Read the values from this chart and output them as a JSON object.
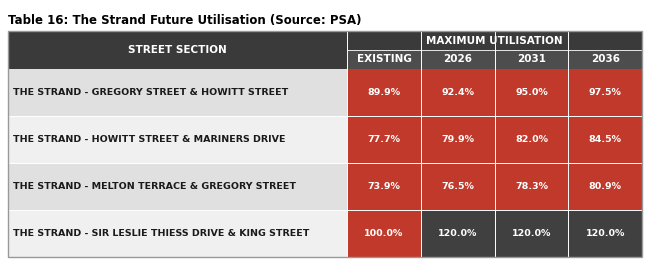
{
  "title": "Table 16: The Strand Future Utilisation (Source: PSA)",
  "header_col": "STREET SECTION",
  "header_group": "MAXIMUM UTILISATION",
  "sub_headers": [
    "EXISTING",
    "2026",
    "2031",
    "2036"
  ],
  "rows": [
    {
      "label": "THE STRAND - GREGORY STREET & HOWITT STREET",
      "values": [
        "89.9%",
        "92.4%",
        "95.0%",
        "97.5%"
      ],
      "colors": [
        "#c0392b",
        "#c0392b",
        "#c0392b",
        "#c0392b"
      ],
      "row_bg": "#e0e0e0"
    },
    {
      "label": "THE STRAND - HOWITT STREET & MARINERS DRIVE",
      "values": [
        "77.7%",
        "79.9%",
        "82.0%",
        "84.5%"
      ],
      "colors": [
        "#c0392b",
        "#c0392b",
        "#c0392b",
        "#c0392b"
      ],
      "row_bg": "#f0f0f0"
    },
    {
      "label": "THE STRAND - MELTON TERRACE & GREGORY STREET",
      "values": [
        "73.9%",
        "76.5%",
        "78.3%",
        "80.9%"
      ],
      "colors": [
        "#c0392b",
        "#c0392b",
        "#c0392b",
        "#c0392b"
      ],
      "row_bg": "#e0e0e0"
    },
    {
      "label": "THE STRAND - SIR LESLIE THIESS DRIVE & KING STREET",
      "values": [
        "100.0%",
        "120.0%",
        "120.0%",
        "120.0%"
      ],
      "colors": [
        "#c0392b",
        "#404040",
        "#404040",
        "#404040"
      ],
      "row_bg": "#f0f0f0"
    }
  ],
  "header_dark_color": "#3a3a3a",
  "subheader_bg": "#4d4d4d",
  "header_text_color": "#ffffff",
  "title_fontsize": 8.5,
  "cell_fontsize": 6.8,
  "header_fontsize": 7.5,
  "fig_width": 6.5,
  "fig_height": 2.79,
  "dpi": 100
}
